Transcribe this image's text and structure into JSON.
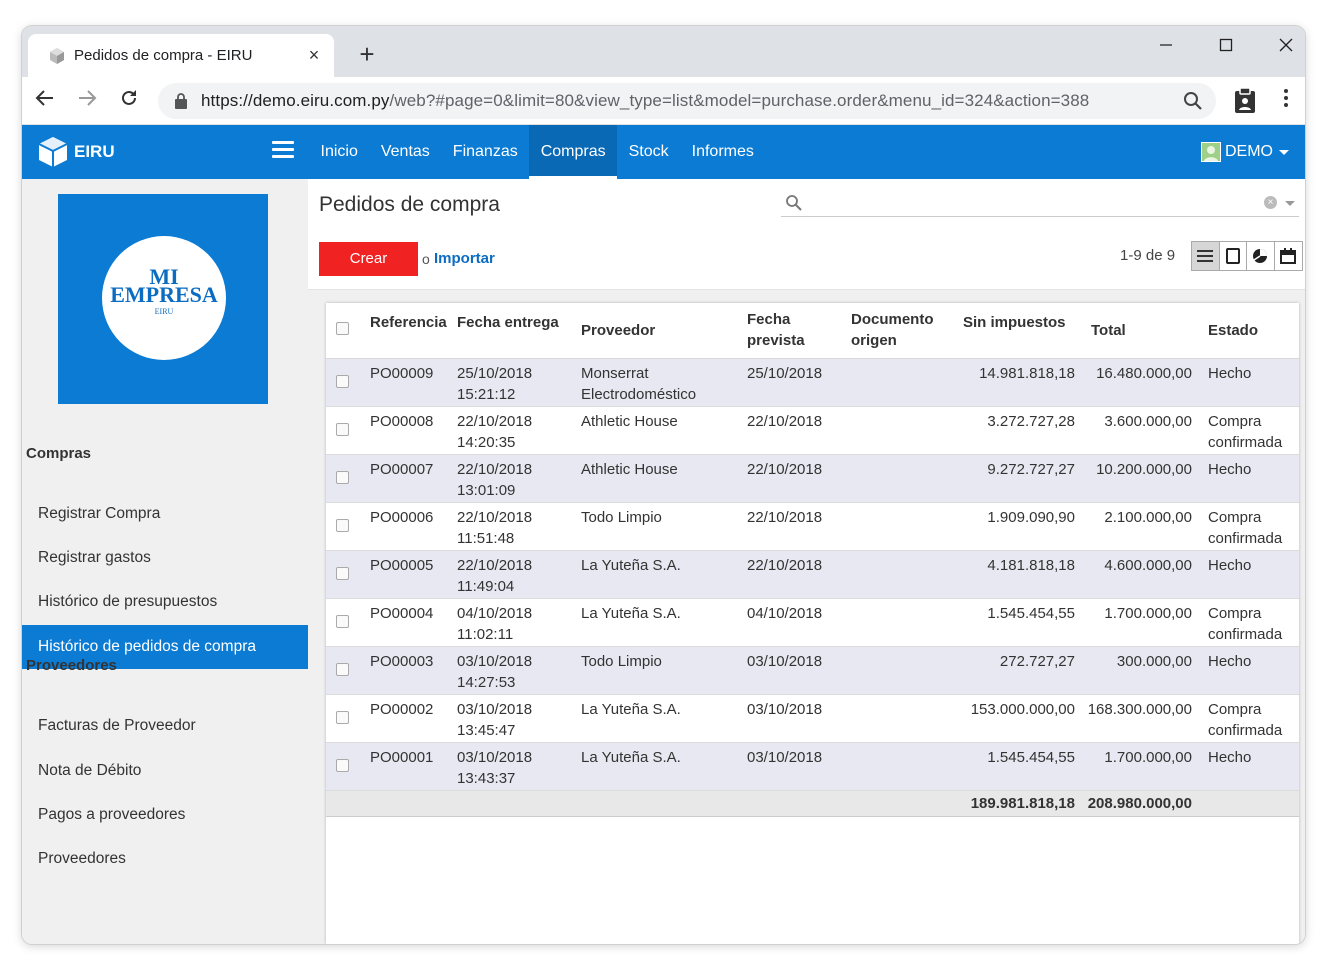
{
  "browser": {
    "tab_title": "Pedidos de compra - EIRU",
    "tab_close": "×",
    "new_tab": "+",
    "url_host": "https://demo.eiru.com.py",
    "url_path": "/web?#page=0&limit=80&view_type=list&model=purchase.order&menu_id=324&action=388",
    "controls": {
      "minimize": "—",
      "maximize": "☐",
      "close": "✕",
      "back": "←",
      "forward": "→",
      "reload": "↻",
      "menu": "⋮"
    }
  },
  "appbar": {
    "brand": "EIRU",
    "menu": [
      {
        "label": "Inicio"
      },
      {
        "label": "Ventas"
      },
      {
        "label": "Finanzas"
      },
      {
        "label": "Compras",
        "active": true
      },
      {
        "label": "Stock"
      },
      {
        "label": "Informes"
      }
    ],
    "user": "DEMO",
    "accent": "#0b7bd3"
  },
  "sidebar": {
    "company": {
      "line1": "MI",
      "line2": "EMPRESA",
      "line3": "EIRU"
    },
    "sections": [
      {
        "title": "Compras",
        "items": [
          {
            "label": "Registrar Compra"
          },
          {
            "label": "Registrar gastos"
          },
          {
            "label": "Histórico de presupuestos"
          },
          {
            "label": "Histórico de pedidos de compra",
            "active": true
          }
        ]
      },
      {
        "title": "Proveedores",
        "items": [
          {
            "label": "Facturas de Proveedor"
          },
          {
            "label": "Nota de Débito"
          },
          {
            "label": "Pagos a proveedores"
          },
          {
            "label": "Proveedores"
          }
        ]
      }
    ]
  },
  "control_panel": {
    "title": "Pedidos de compra",
    "search_placeholder": "",
    "create_label": "Crear",
    "import_or": "o",
    "import_label": "Importar",
    "pager": "1-9 de 9",
    "create_color": "#f02222"
  },
  "table": {
    "headers": {
      "ref": "Referencia",
      "date": "Fecha entrega",
      "supplier": "Proveedor",
      "planned_1": "Fecha",
      "planned_2": "prevista",
      "origin_1": "Documento",
      "origin_2": "origen",
      "untaxed": "Sin impuestos",
      "total": "Total",
      "state": "Estado"
    },
    "rows": [
      {
        "ref": "PO00009",
        "date": "25/10/2018",
        "time": "15:21:12",
        "supplier": "Monserrat Electrodoméstico",
        "planned": "25/10/2018",
        "origin": "",
        "untaxed": "14.981.818,18",
        "total": "16.480.000,00",
        "state": "Hecho"
      },
      {
        "ref": "PO00008",
        "date": "22/10/2018",
        "time": "14:20:35",
        "supplier": "Athletic House",
        "planned": "22/10/2018",
        "origin": "",
        "untaxed": "3.272.727,28",
        "total": "3.600.000,00",
        "state": "Compra confirmada"
      },
      {
        "ref": "PO00007",
        "date": "22/10/2018",
        "time": "13:01:09",
        "supplier": "Athletic House",
        "planned": "22/10/2018",
        "origin": "",
        "untaxed": "9.272.727,27",
        "total": "10.200.000,00",
        "state": "Hecho"
      },
      {
        "ref": "PO00006",
        "date": "22/10/2018",
        "time": "11:51:48",
        "supplier": "Todo Limpio",
        "planned": "22/10/2018",
        "origin": "",
        "untaxed": "1.909.090,90",
        "total": "2.100.000,00",
        "state": "Compra confirmada"
      },
      {
        "ref": "PO00005",
        "date": "22/10/2018",
        "time": "11:49:04",
        "supplier": "La Yuteña S.A.",
        "planned": "22/10/2018",
        "origin": "",
        "untaxed": "4.181.818,18",
        "total": "4.600.000,00",
        "state": "Hecho"
      },
      {
        "ref": "PO00004",
        "date": "04/10/2018",
        "time": "11:02:11",
        "supplier": "La Yuteña S.A.",
        "planned": "04/10/2018",
        "origin": "",
        "untaxed": "1.545.454,55",
        "total": "1.700.000,00",
        "state": "Compra confirmada"
      },
      {
        "ref": "PO00003",
        "date": "03/10/2018",
        "time": "14:27:53",
        "supplier": "Todo Limpio",
        "planned": "03/10/2018",
        "origin": "",
        "untaxed": "272.727,27",
        "total": "300.000,00",
        "state": "Hecho"
      },
      {
        "ref": "PO00002",
        "date": "03/10/2018",
        "time": "13:45:47",
        "supplier": "La Yuteña S.A.",
        "planned": "03/10/2018",
        "origin": "",
        "untaxed": "153.000.000,00",
        "total": "168.300.000,00",
        "state": "Compra confirmada"
      },
      {
        "ref": "PO00001",
        "date": "03/10/2018",
        "time": "13:43:37",
        "supplier": "La Yuteña S.A.",
        "planned": "03/10/2018",
        "origin": "",
        "untaxed": "1.545.454,55",
        "total": "1.700.000,00",
        "state": "Hecho"
      }
    ],
    "footer": {
      "untaxed": "189.981.818,18",
      "total": "208.980.000,00"
    }
  }
}
